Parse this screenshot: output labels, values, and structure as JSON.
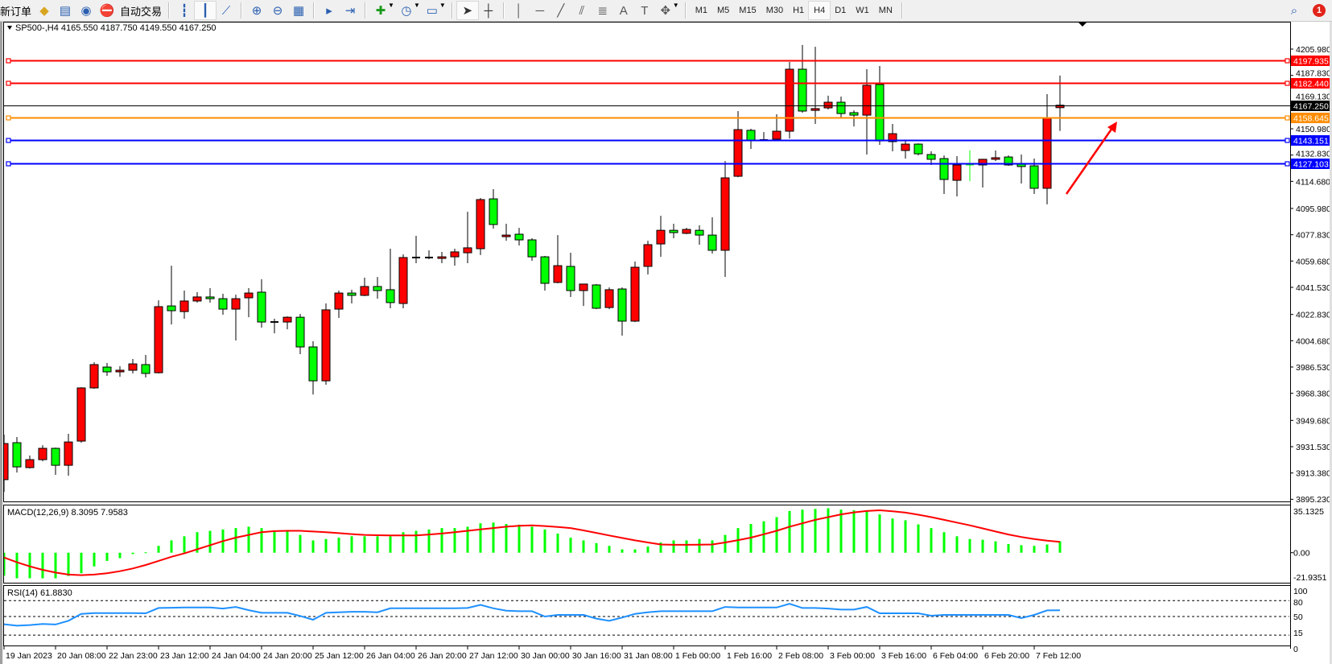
{
  "toolbar": {
    "new_order_label": "新订单",
    "auto_trading_label": "自动交易",
    "icons_group1": [
      "market-watch-icon",
      "data-window-icon",
      "navigator-icon",
      "auto-trading-icon"
    ],
    "chart_type_icons": [
      "bar-chart-icon",
      "candlestick-chart-icon",
      "line-chart-icon"
    ],
    "zoom_icons": [
      "zoom-in-icon",
      "zoom-out-icon",
      "tile-windows-icon"
    ],
    "scroll_icons": [
      "auto-scroll-icon",
      "chart-shift-icon"
    ],
    "dropdown_icons": [
      "indicators-icon",
      "periodicity-icon",
      "templates-icon"
    ],
    "cursor_icons": [
      "cursor-icon",
      "crosshair-icon"
    ],
    "drawing_icons": [
      "vertical-line-icon",
      "horizontal-line-icon",
      "trendline-icon",
      "equidistant-channel-icon",
      "fibonacci-icon",
      "text-icon",
      "text-label-icon",
      "arrows-icon"
    ],
    "timeframes": [
      "M1",
      "M5",
      "M15",
      "M30",
      "H1",
      "H4",
      "D1",
      "W1",
      "MN"
    ],
    "active_timeframe": "H4",
    "notification_count": "1"
  },
  "chart": {
    "header": "SP500-,H4  4165.550 4187.750 4149.550 4167.250",
    "symbol": "SP500-",
    "timeframe": "H4",
    "bull_color": "#ff0000",
    "bear_color": "#00ff00",
    "price_axis_labels": [
      "4205.980",
      "4187.830",
      "4169.130",
      "4150.980",
      "4132.830",
      "4114.680",
      "4095.980",
      "4077.830",
      "4059.680",
      "4041.530",
      "4022.830",
      "4004.680",
      "3986.530",
      "3968.380",
      "3949.680",
      "3931.530",
      "3913.380",
      "3895.230"
    ],
    "bid": {
      "price": 4167.25,
      "label": "4167.250",
      "color": "#000000"
    },
    "levels": [
      {
        "price": 4197.935,
        "label": "4197.935",
        "color": "#ff0000"
      },
      {
        "price": 4182.44,
        "label": "4182.440",
        "color": "#ff0000"
      },
      {
        "price": 4158.645,
        "label": "4158.645",
        "color": "#ff8c00"
      },
      {
        "price": 4143.151,
        "label": "4143.151",
        "color": "#0000ff"
      },
      {
        "price": 4127.103,
        "label": "4127.103",
        "color": "#0000ff"
      }
    ],
    "annotation_arrow_color": "#ff0000"
  },
  "chart_data": {
    "type": "candlestick",
    "ylim": [
      3895.23,
      4205.98
    ],
    "time_labels": [
      "19 Jan 2023",
      "20 Jan 08:00",
      "22 Jan 23:00",
      "23 Jan 12:00",
      "24 Jan 04:00",
      "24 Jan 20:00",
      "25 Jan 12:00",
      "26 Jan 04:00",
      "26 Jan 20:00",
      "27 Jan 12:00",
      "30 Jan 00:00",
      "30 Jan 16:00",
      "31 Jan 08:00",
      "1 Feb 00:00",
      "1 Feb 16:00",
      "2 Feb 08:00",
      "3 Feb 00:00",
      "3 Feb 16:00",
      "6 Feb 04:00",
      "6 Feb 20:00",
      "7 Feb 12:00"
    ],
    "time_label_every_n_bars": 4,
    "ohlc": [
      [
        3908.8,
        3939.9,
        3900.4,
        3933.7
      ],
      [
        3934.3,
        3938.2,
        3913.7,
        3917.6
      ],
      [
        3917.1,
        3925.4,
        3916.5,
        3922.6
      ],
      [
        3922.6,
        3932.6,
        3921.5,
        3930.4
      ],
      [
        3930.4,
        3930.9,
        3912.1,
        3918.7
      ],
      [
        3918.7,
        3940.4,
        3911.5,
        3934.8
      ],
      [
        3935.4,
        3972.6,
        3934.3,
        3972.1
      ],
      [
        3972.1,
        3989.8,
        3971.5,
        3988.2
      ],
      [
        3986.5,
        3989.3,
        3980.4,
        3983.2
      ],
      [
        3983.2,
        3987.1,
        3979.8,
        3984.3
      ],
      [
        3984.3,
        3992.1,
        3982.1,
        3988.7
      ],
      [
        3988.2,
        3994.9,
        3979.3,
        3982.1
      ],
      [
        3982.6,
        4032.6,
        3982.1,
        4028.2
      ],
      [
        4028.7,
        4056.5,
        4015.9,
        4025.4
      ],
      [
        4024.8,
        4039.3,
        4019.9,
        4032.1
      ],
      [
        4032.1,
        4038.2,
        4031.0,
        4034.9
      ],
      [
        4034.9,
        4041.0,
        4031.0,
        4033.7
      ],
      [
        4033.7,
        4037.1,
        4022.6,
        4026.5
      ],
      [
        4026.5,
        4036.5,
        4004.9,
        4033.7
      ],
      [
        4034.3,
        4041.0,
        4020.9,
        4037.6
      ],
      [
        4038.2,
        4047.1,
        4013.7,
        4017.6
      ],
      [
        4017.6,
        4019.9,
        4009.8,
        4017.4
      ],
      [
        4017.6,
        4021.5,
        4012.6,
        4020.9
      ],
      [
        4020.9,
        4023.2,
        3995.4,
        4000.4
      ],
      [
        4000.4,
        4004.3,
        3967.6,
        3977.0
      ],
      [
        3977.0,
        4030.4,
        3974.3,
        4026.0
      ],
      [
        4026.5,
        4039.3,
        4020.4,
        4037.6
      ],
      [
        4037.6,
        4039.9,
        4030.4,
        4036.0
      ],
      [
        4036.0,
        4048.2,
        4035.4,
        4042.1
      ],
      [
        4042.1,
        4048.7,
        4033.7,
        4039.3
      ],
      [
        4039.9,
        4068.2,
        4027.1,
        4031.0
      ],
      [
        4030.4,
        4064.3,
        4027.1,
        4062.1
      ],
      [
        4062.1,
        4077.1,
        4058.2,
        4062.0
      ],
      [
        4062.1,
        4067.1,
        4061.0,
        4062.2
      ],
      [
        4061.5,
        4066.0,
        4058.2,
        4062.6
      ],
      [
        4062.6,
        4068.2,
        4056.5,
        4066.0
      ],
      [
        4065.4,
        4093.7,
        4058.2,
        4068.8
      ],
      [
        4068.2,
        4103.2,
        4063.8,
        4102.1
      ],
      [
        4102.6,
        4109.3,
        4082.1,
        4084.9
      ],
      [
        4076.5,
        4085.4,
        4073.7,
        4077.6
      ],
      [
        4078.2,
        4082.6,
        4070.4,
        4074.3
      ],
      [
        4074.3,
        4075.4,
        4059.9,
        4062.6
      ],
      [
        4062.6,
        4063.2,
        4039.3,
        4044.3
      ],
      [
        4044.9,
        4077.6,
        4044.3,
        4056.5
      ],
      [
        4056.0,
        4065.4,
        4034.9,
        4039.3
      ],
      [
        4039.3,
        4043.8,
        4028.7,
        4043.8
      ],
      [
        4043.2,
        4043.8,
        4026.5,
        4027.1
      ],
      [
        4027.6,
        4041.5,
        4026.5,
        4039.9
      ],
      [
        4040.4,
        4041.5,
        4008.2,
        4018.2
      ],
      [
        4018.2,
        4059.3,
        4017.6,
        4055.4
      ],
      [
        4056.0,
        4073.7,
        4050.4,
        4071.0
      ],
      [
        4071.5,
        4090.9,
        4062.6,
        4080.9
      ],
      [
        4080.9,
        4085.4,
        4075.4,
        4079.3
      ],
      [
        4078.8,
        4082.6,
        4078.2,
        4081.5
      ],
      [
        4080.9,
        4084.3,
        4070.9,
        4077.6
      ],
      [
        4077.6,
        4089.9,
        4064.9,
        4067.1
      ],
      [
        4067.1,
        4128.7,
        4048.7,
        4117.1
      ],
      [
        4118.2,
        4163.2,
        4117.6,
        4150.4
      ],
      [
        4149.9,
        4151.0,
        4137.1,
        4143.2
      ],
      [
        4143.2,
        4148.7,
        4142.6,
        4143.1
      ],
      [
        4143.8,
        4161.0,
        4143.2,
        4149.3
      ],
      [
        4149.3,
        4197.1,
        4144.3,
        4192.1
      ],
      [
        4192.1,
        4208.8,
        4162.1,
        4163.2
      ],
      [
        4163.7,
        4207.6,
        4154.3,
        4164.9
      ],
      [
        4165.4,
        4173.8,
        4164.3,
        4169.3
      ],
      [
        4169.3,
        4173.2,
        4158.7,
        4161.5
      ],
      [
        4162.1,
        4163.7,
        4152.6,
        4160.4
      ],
      [
        4160.4,
        4192.1,
        4133.2,
        4181.0
      ],
      [
        4181.5,
        4194.3,
        4139.9,
        4142.6
      ],
      [
        4142.1,
        4154.3,
        4135.4,
        4147.6
      ],
      [
        4136.0,
        4143.2,
        4130.4,
        4140.4
      ],
      [
        4140.4,
        4140.9,
        4132.6,
        4133.7
      ],
      [
        4133.2,
        4135.4,
        4126.0,
        4129.9
      ],
      [
        4130.4,
        4132.6,
        4106.0,
        4116.0
      ],
      [
        4115.4,
        4132.1,
        4104.3,
        4126.0
      ],
      [
        4126.0,
        4136.0,
        4114.9,
        4126.0
      ],
      [
        4126.0,
        4130.2,
        4110.4,
        4129.9
      ],
      [
        4129.9,
        4136.0,
        4128.7,
        4131.0
      ],
      [
        4131.5,
        4132.6,
        4125.4,
        4126.0
      ],
      [
        4126.5,
        4133.2,
        4113.2,
        4124.9
      ],
      [
        4125.4,
        4130.4,
        4106.0,
        4109.9
      ],
      [
        4109.9,
        4174.9,
        4098.8,
        4158.7
      ],
      [
        4165.55,
        4187.75,
        4149.55,
        4167.25
      ]
    ],
    "macd": {
      "label": "MACD(12,26,9) 8.3095 7.9583",
      "ylim": [
        -21.9351,
        35.1325
      ],
      "axis_labels": [
        "35.1325",
        "0.00",
        "-21.9351"
      ],
      "histogram_color": "#00ff00",
      "signal_color": "#ff0000",
      "histogram": [
        -16.8,
        -18.7,
        -18.7,
        -18.7,
        -18.7,
        -17,
        -15,
        -10,
        -6,
        -4,
        -1,
        0.3,
        5,
        9,
        12,
        15,
        16,
        17,
        18,
        19,
        18,
        16,
        16,
        13,
        9,
        10,
        11,
        12,
        12,
        12,
        12,
        15,
        16,
        17,
        18,
        18,
        19,
        21.5,
        22,
        21,
        20.5,
        19,
        17,
        14,
        11,
        9,
        7,
        5,
        2.4,
        2.4,
        4.5,
        7.5,
        9,
        9,
        10,
        9,
        13,
        18,
        21,
        23,
        26,
        30.5,
        31.5,
        32,
        32.5,
        31.5,
        31,
        30.5,
        28,
        25,
        23.7,
        20.7,
        18,
        15,
        12,
        10,
        9.5,
        8.3,
        6.3,
        5.5,
        5,
        6,
        8.3095
      ],
      "signal": [
        -3.5,
        -7,
        -10,
        -12.5,
        -14.5,
        -16,
        -16.4,
        -16,
        -15,
        -13.5,
        -11.5,
        -9,
        -6,
        -3,
        -0.5,
        2.5,
        5.5,
        8.5,
        11,
        13,
        15,
        15.8,
        16,
        16,
        15.5,
        15,
        14.3,
        13.6,
        13,
        12.8,
        12.6,
        12.6,
        12.6,
        13.3,
        14,
        15,
        16,
        17,
        18,
        19,
        19.7,
        20,
        19.5,
        18.8,
        18,
        16.3,
        14.5,
        12.6,
        10.8,
        9,
        7.5,
        6,
        5.8,
        5.8,
        5.9,
        6,
        7.5,
        9.2,
        11,
        13.5,
        16,
        19,
        21.5,
        24,
        26,
        28,
        29.5,
        30.5,
        31,
        30.3,
        29.3,
        27.8,
        26,
        24,
        22,
        20,
        17.8,
        15.5,
        13.3,
        11.5,
        10,
        8.8,
        7.9583
      ]
    },
    "rsi": {
      "label": "RSI(14) 61.8830",
      "ylim": [
        0,
        100
      ],
      "levels": [
        80,
        50,
        15
      ],
      "axis_labels": [
        "100",
        "80",
        "50",
        "15",
        "0"
      ],
      "color": "#1e90ff",
      "values": [
        35.5,
        32.7,
        34,
        36,
        35,
        42,
        55,
        56.4,
        56.4,
        56.4,
        56.4,
        56,
        66,
        66.5,
        67,
        67,
        67,
        65,
        68,
        62,
        57,
        57,
        57,
        51,
        44,
        57,
        58,
        59,
        59,
        58,
        65.5,
        65.5,
        65.5,
        65.5,
        65.5,
        65.5,
        66,
        72,
        65.5,
        61,
        60,
        60,
        50,
        53,
        53,
        53,
        46,
        42,
        48,
        55,
        58,
        60,
        60,
        60,
        60,
        60,
        68,
        67,
        67,
        67,
        67,
        74,
        66,
        66,
        65,
        63,
        63,
        68,
        56,
        56,
        56,
        56,
        51.5,
        53,
        53,
        53,
        53,
        53,
        53,
        47,
        53,
        61.5,
        61.883
      ]
    }
  }
}
